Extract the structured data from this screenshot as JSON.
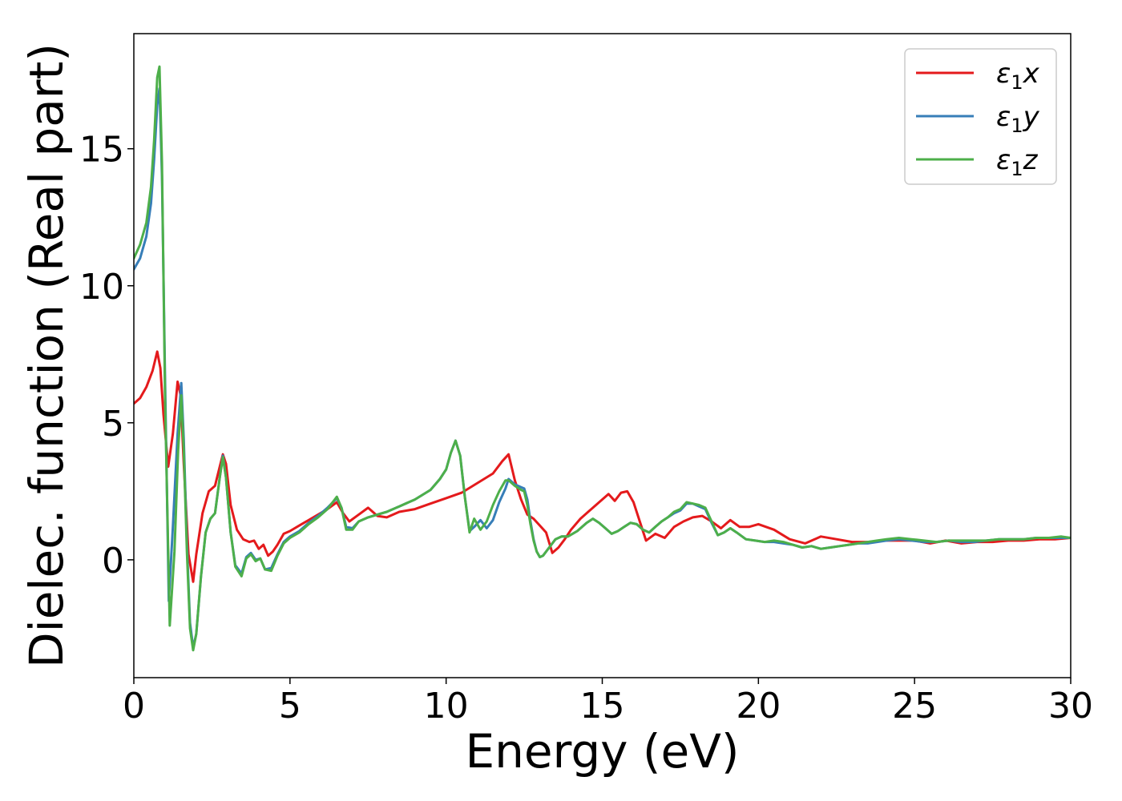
{
  "chart_data": {
    "type": "line",
    "title": "",
    "xlabel": "Energy (eV)",
    "ylabel": "Dielec. function (Real part)",
    "xlim": [
      0,
      30
    ],
    "ylim": [
      -4.3,
      19.2
    ],
    "xticks": [
      0,
      5,
      10,
      15,
      20,
      25,
      30
    ],
    "xtick_labels": [
      "0",
      "5",
      "10",
      "15",
      "20",
      "25",
      "30"
    ],
    "yticks": [
      0,
      5,
      10,
      15
    ],
    "ytick_labels": [
      "0",
      "5",
      "10",
      "15"
    ],
    "grid": false,
    "legend_position": "top-right",
    "series": [
      {
        "name": "ε₁x",
        "legend_base": "ε",
        "legend_sub": "1",
        "legend_suffix": "x",
        "color": "#e41a1c",
        "x": [
          0,
          0.2,
          0.4,
          0.6,
          0.75,
          0.85,
          0.95,
          1.1,
          1.25,
          1.4,
          1.5,
          1.6,
          1.75,
          1.9,
          2.0,
          2.2,
          2.4,
          2.6,
          2.75,
          2.85,
          2.95,
          3.1,
          3.3,
          3.5,
          3.7,
          3.85,
          4.0,
          4.15,
          4.3,
          4.45,
          4.6,
          4.8,
          5.0,
          5.3,
          5.6,
          5.9,
          6.2,
          6.5,
          6.7,
          6.9,
          7.2,
          7.5,
          7.8,
          8.1,
          8.5,
          9.0,
          9.5,
          10.0,
          10.5,
          11.0,
          11.5,
          11.8,
          12.0,
          12.2,
          12.4,
          12.6,
          12.8,
          13.0,
          13.2,
          13.4,
          13.6,
          13.8,
          14.0,
          14.3,
          14.6,
          14.9,
          15.2,
          15.4,
          15.6,
          15.8,
          16.0,
          16.2,
          16.4,
          16.7,
          17.0,
          17.3,
          17.6,
          17.9,
          18.2,
          18.5,
          18.8,
          19.1,
          19.4,
          19.7,
          20.0,
          20.5,
          21.0,
          21.5,
          22.0,
          22.5,
          23.0,
          23.5,
          24.0,
          24.5,
          25.0,
          25.5,
          26.0,
          26.5,
          27.0,
          27.5,
          28.0,
          28.5,
          29.0,
          29.5,
          30.0
        ],
        "y": [
          5.7,
          5.9,
          6.3,
          6.9,
          7.6,
          7.0,
          5.3,
          3.4,
          4.6,
          6.5,
          6.0,
          3.5,
          0.2,
          -0.8,
          0.2,
          1.7,
          2.5,
          2.7,
          3.4,
          3.85,
          3.5,
          2.0,
          1.1,
          0.75,
          0.65,
          0.7,
          0.4,
          0.55,
          0.15,
          0.3,
          0.55,
          0.95,
          1.05,
          1.25,
          1.45,
          1.65,
          1.85,
          2.1,
          1.7,
          1.4,
          1.65,
          1.9,
          1.6,
          1.55,
          1.75,
          1.85,
          2.05,
          2.25,
          2.45,
          2.8,
          3.15,
          3.6,
          3.85,
          2.9,
          2.2,
          1.65,
          1.5,
          1.25,
          1.0,
          0.25,
          0.45,
          0.75,
          1.1,
          1.5,
          1.8,
          2.1,
          2.4,
          2.15,
          2.45,
          2.5,
          2.1,
          1.4,
          0.7,
          0.95,
          0.8,
          1.2,
          1.4,
          1.55,
          1.6,
          1.4,
          1.15,
          1.45,
          1.2,
          1.2,
          1.3,
          1.1,
          0.75,
          0.6,
          0.85,
          0.75,
          0.65,
          0.65,
          0.7,
          0.7,
          0.7,
          0.6,
          0.7,
          0.6,
          0.65,
          0.65,
          0.7,
          0.7,
          0.75,
          0.75,
          0.8
        ]
      },
      {
        "name": "ε₁y",
        "legend_base": "ε",
        "legend_sub": "1",
        "legend_suffix": "y",
        "color": "#377eb8",
        "x": [
          0,
          0.2,
          0.4,
          0.55,
          0.65,
          0.75,
          0.82,
          0.9,
          1.0,
          1.12,
          1.25,
          1.4,
          1.52,
          1.6,
          1.7,
          1.8,
          1.9,
          2.0,
          2.15,
          2.3,
          2.45,
          2.6,
          2.75,
          2.85,
          2.95,
          3.1,
          3.25,
          3.45,
          3.6,
          3.75,
          3.9,
          4.05,
          4.2,
          4.4,
          4.6,
          4.8,
          5.0,
          5.3,
          5.6,
          5.9,
          6.2,
          6.5,
          6.65,
          6.8,
          7.0,
          7.2,
          7.5,
          7.8,
          8.1,
          8.5,
          9.0,
          9.5,
          9.8,
          10.0,
          10.15,
          10.3,
          10.45,
          10.6,
          10.75,
          10.9,
          11.1,
          11.3,
          11.5,
          11.7,
          11.9,
          12.0,
          12.2,
          12.4,
          12.5,
          12.6,
          12.7,
          12.8,
          12.9,
          13.0,
          13.1,
          13.3,
          13.5,
          13.7,
          13.9,
          14.2,
          14.5,
          14.7,
          14.9,
          15.1,
          15.3,
          15.5,
          15.7,
          15.9,
          16.1,
          16.3,
          16.5,
          16.7,
          16.9,
          17.1,
          17.3,
          17.5,
          17.7,
          17.9,
          18.1,
          18.3,
          18.5,
          18.7,
          18.9,
          19.1,
          19.3,
          19.6,
          19.9,
          20.2,
          20.5,
          20.8,
          21.1,
          21.4,
          21.7,
          22.0,
          22.3,
          22.6,
          22.9,
          23.2,
          23.5,
          23.8,
          24.1,
          24.5,
          24.9,
          25.3,
          25.7,
          26.1,
          26.5,
          26.9,
          27.3,
          27.7,
          28.1,
          28.5,
          28.9,
          29.3,
          29.7,
          30.0
        ],
        "y": [
          10.6,
          11.0,
          11.8,
          13.0,
          14.6,
          16.6,
          17.2,
          14.0,
          6.5,
          -1.5,
          1.2,
          4.6,
          6.45,
          4.4,
          0.6,
          -2.3,
          -3.2,
          -2.7,
          -0.6,
          1.0,
          1.5,
          1.7,
          3.0,
          3.8,
          3.0,
          1.0,
          -0.2,
          -0.5,
          0.1,
          0.25,
          0.0,
          0.05,
          -0.35,
          -0.3,
          0.2,
          0.65,
          0.85,
          1.05,
          1.35,
          1.6,
          1.9,
          2.25,
          1.9,
          1.2,
          1.15,
          1.4,
          1.55,
          1.65,
          1.75,
          1.95,
          2.2,
          2.55,
          2.95,
          3.3,
          3.9,
          4.35,
          3.8,
          2.3,
          1.05,
          1.2,
          1.45,
          1.15,
          1.45,
          2.1,
          2.6,
          2.95,
          2.75,
          2.65,
          2.6,
          2.2,
          1.4,
          0.75,
          0.3,
          0.1,
          0.15,
          0.45,
          0.75,
          0.85,
          0.85,
          1.05,
          1.35,
          1.5,
          1.35,
          1.15,
          0.95,
          1.05,
          1.2,
          1.35,
          1.3,
          1.1,
          1.0,
          1.2,
          1.4,
          1.55,
          1.7,
          1.8,
          2.05,
          2.05,
          1.95,
          1.85,
          1.35,
          0.9,
          1.0,
          1.15,
          1.0,
          0.75,
          0.7,
          0.65,
          0.65,
          0.6,
          0.55,
          0.45,
          0.5,
          0.4,
          0.45,
          0.5,
          0.55,
          0.6,
          0.6,
          0.65,
          0.7,
          0.75,
          0.7,
          0.65,
          0.65,
          0.7,
          0.65,
          0.65,
          0.7,
          0.75,
          0.75,
          0.75,
          0.8,
          0.8,
          0.8,
          0.8
        ]
      },
      {
        "name": "ε₁z",
        "legend_base": "ε",
        "legend_sub": "1",
        "legend_suffix": "z",
        "color": "#4daf4a",
        "x": [
          0,
          0.2,
          0.4,
          0.55,
          0.65,
          0.75,
          0.82,
          0.9,
          1.0,
          1.15,
          1.3,
          1.42,
          1.52,
          1.6,
          1.7,
          1.8,
          1.9,
          2.0,
          2.15,
          2.3,
          2.45,
          2.6,
          2.75,
          2.85,
          2.95,
          3.1,
          3.25,
          3.45,
          3.6,
          3.75,
          3.9,
          4.05,
          4.2,
          4.4,
          4.6,
          4.8,
          5.0,
          5.3,
          5.6,
          5.9,
          6.2,
          6.5,
          6.65,
          6.8,
          7.0,
          7.2,
          7.5,
          7.8,
          8.1,
          8.5,
          9.0,
          9.5,
          9.8,
          10.0,
          10.15,
          10.3,
          10.45,
          10.6,
          10.75,
          10.9,
          11.1,
          11.3,
          11.5,
          11.7,
          11.9,
          12.0,
          12.2,
          12.4,
          12.5,
          12.6,
          12.7,
          12.8,
          12.9,
          13.0,
          13.1,
          13.3,
          13.5,
          13.7,
          13.9,
          14.2,
          14.5,
          14.7,
          14.9,
          15.1,
          15.3,
          15.5,
          15.7,
          15.9,
          16.1,
          16.3,
          16.5,
          16.7,
          16.9,
          17.1,
          17.3,
          17.5,
          17.7,
          17.9,
          18.1,
          18.3,
          18.5,
          18.7,
          18.9,
          19.1,
          19.3,
          19.6,
          19.9,
          20.2,
          20.5,
          20.8,
          21.1,
          21.4,
          21.7,
          22.0,
          22.3,
          22.6,
          22.9,
          23.2,
          23.5,
          23.8,
          24.1,
          24.5,
          24.9,
          25.3,
          25.7,
          26.1,
          26.5,
          26.9,
          27.3,
          27.7,
          28.1,
          28.5,
          28.9,
          29.3,
          29.7,
          30.0
        ],
        "y": [
          11.0,
          11.5,
          12.3,
          13.6,
          15.3,
          17.6,
          18.0,
          14.5,
          5.8,
          -2.4,
          0.3,
          4.0,
          6.0,
          4.0,
          0.3,
          -2.5,
          -3.3,
          -2.7,
          -0.6,
          1.0,
          1.5,
          1.7,
          3.0,
          3.75,
          3.0,
          1.0,
          -0.25,
          -0.6,
          0.05,
          0.2,
          -0.05,
          0.05,
          -0.35,
          -0.4,
          0.15,
          0.6,
          0.8,
          1.0,
          1.3,
          1.55,
          1.85,
          2.3,
          1.9,
          1.1,
          1.1,
          1.4,
          1.55,
          1.65,
          1.75,
          1.95,
          2.2,
          2.55,
          2.95,
          3.3,
          3.9,
          4.35,
          3.8,
          2.3,
          1.0,
          1.5,
          1.1,
          1.4,
          2.0,
          2.5,
          2.9,
          2.9,
          2.7,
          2.55,
          2.5,
          2.0,
          1.3,
          0.7,
          0.3,
          0.1,
          0.15,
          0.45,
          0.75,
          0.85,
          0.85,
          1.05,
          1.35,
          1.5,
          1.35,
          1.15,
          0.95,
          1.05,
          1.2,
          1.35,
          1.3,
          1.1,
          1.0,
          1.2,
          1.4,
          1.55,
          1.75,
          1.85,
          2.1,
          2.05,
          2.0,
          1.9,
          1.4,
          0.9,
          1.0,
          1.15,
          1.0,
          0.75,
          0.7,
          0.65,
          0.7,
          0.65,
          0.55,
          0.45,
          0.5,
          0.4,
          0.45,
          0.5,
          0.55,
          0.6,
          0.65,
          0.7,
          0.75,
          0.8,
          0.75,
          0.7,
          0.65,
          0.7,
          0.7,
          0.7,
          0.7,
          0.75,
          0.75,
          0.75,
          0.8,
          0.8,
          0.85,
          0.8
        ]
      }
    ]
  }
}
